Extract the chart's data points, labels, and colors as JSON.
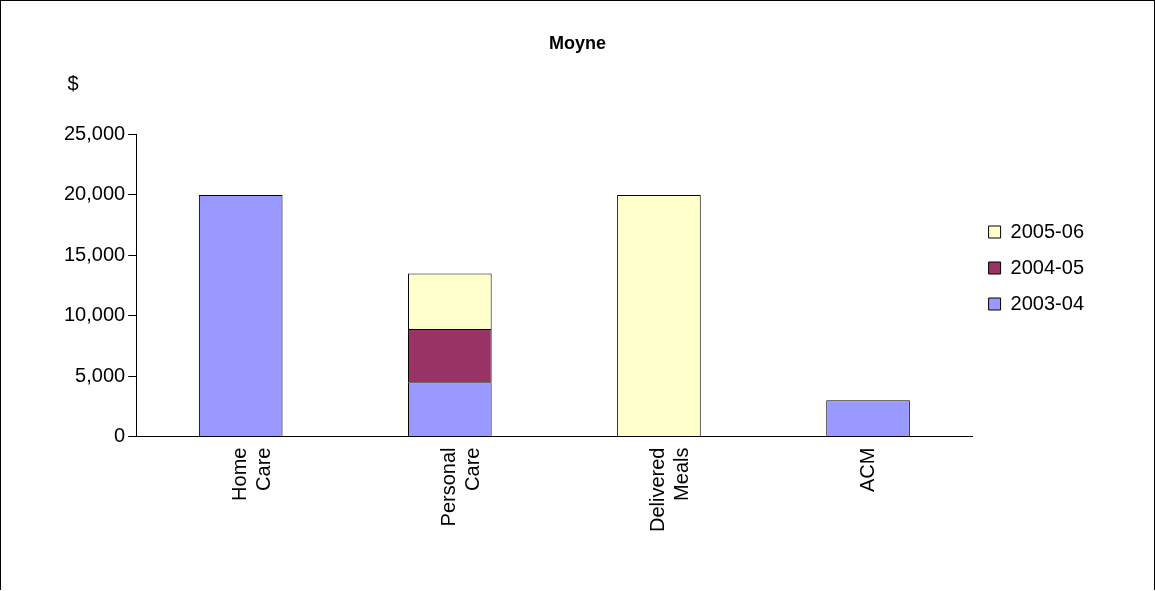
{
  "chart_data": {
    "type": "bar",
    "title": "Moyne",
    "ylabel": "$",
    "stacked": true,
    "categories": [
      "Home Care",
      "Personal Care",
      "Delivered Meals",
      "ACM"
    ],
    "series": [
      {
        "name": "2003-04",
        "color": "#9999ff",
        "values": [
          20000,
          4500,
          null,
          3000
        ]
      },
      {
        "name": "2004-05",
        "color": "#993366",
        "values": [
          null,
          4400,
          null,
          null
        ]
      },
      {
        "name": "2005-06",
        "color": "#ffffcc",
        "values": [
          null,
          4600,
          20000,
          null
        ]
      }
    ],
    "ylim": [
      0,
      25000
    ],
    "yticks": [
      {
        "value": 0,
        "label": "0"
      },
      {
        "value": 5000,
        "label": "5,000"
      },
      {
        "value": 10000,
        "label": "10,000"
      },
      {
        "value": 15000,
        "label": "15,000"
      },
      {
        "value": 20000,
        "label": "20,000"
      },
      {
        "value": 25000,
        "label": "25,000"
      }
    ],
    "grid": false,
    "legend": "right"
  }
}
